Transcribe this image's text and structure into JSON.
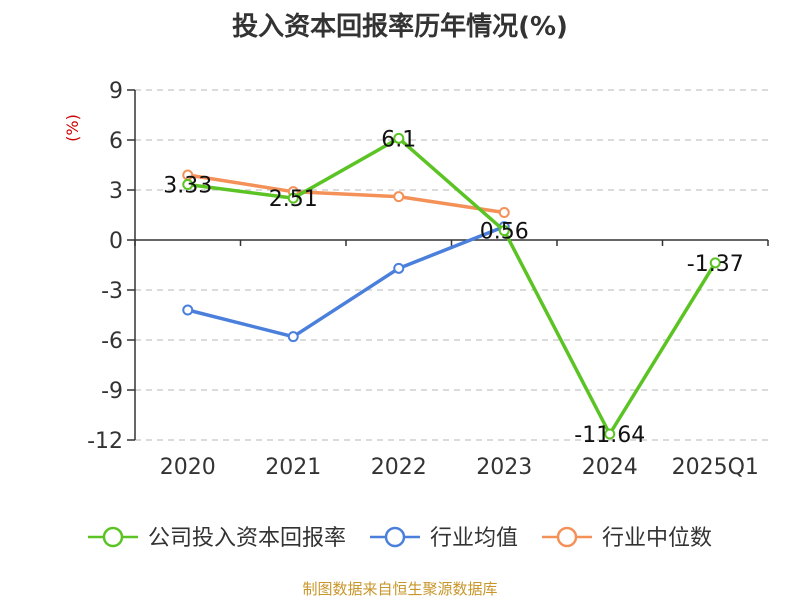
{
  "chart_data": {
    "type": "line",
    "title": "投入资本回报率历年情况(%)",
    "ylabel": "(%)",
    "xlabel": "",
    "categories": [
      "2020",
      "2021",
      "2022",
      "2023",
      "2024",
      "2025Q1"
    ],
    "ylim": [
      -12,
      9
    ],
    "yticks": [
      9,
      6,
      3,
      0,
      -3,
      -6,
      -9,
      -12
    ],
    "grid": "horizontal-dashed",
    "legend_position": "bottom",
    "series": [
      {
        "name": "公司投入资本回报率",
        "color": "#5bc424",
        "values": [
          3.33,
          2.51,
          6.1,
          0.56,
          -11.64,
          -1.37
        ],
        "labels": [
          "3.33",
          "2.51",
          "6.1",
          "0.56",
          "-11.64",
          "-1.37"
        ]
      },
      {
        "name": "行业均值",
        "color": "#4a7fdb",
        "values": [
          -4.2,
          -5.8,
          -1.7,
          0.8,
          null,
          null
        ]
      },
      {
        "name": "行业中位数",
        "color": "#f39159",
        "values": [
          3.9,
          2.9,
          2.6,
          1.65,
          null,
          null
        ]
      }
    ]
  },
  "source": "制图数据来自恒生聚源数据库"
}
